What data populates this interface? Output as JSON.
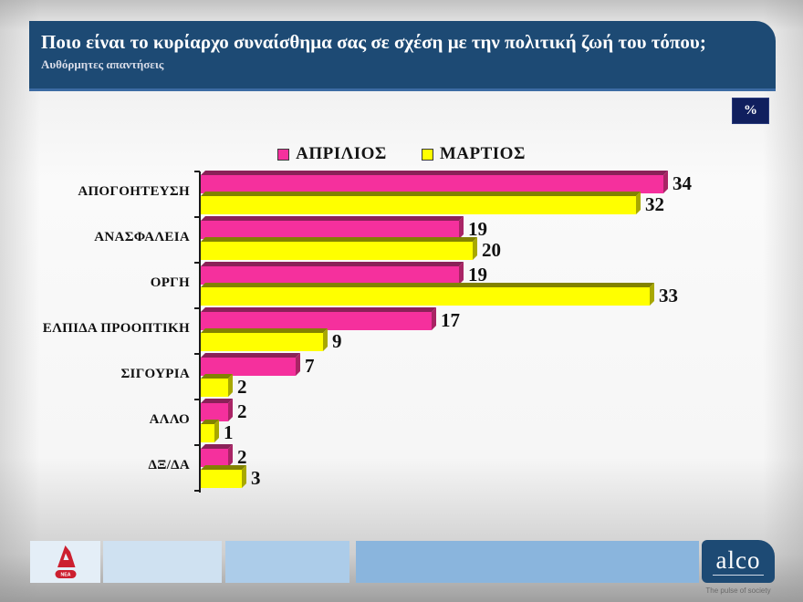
{
  "header": {
    "title": "Ποιο είναι το κυρίαρχο συναίσθημα σας σε σχέση με την πολιτική ζωή του τόπου;",
    "subtitle": "Αυθόρμητες απαντήσεις",
    "unit_badge": "%"
  },
  "chart_data": {
    "type": "bar",
    "orientation": "horizontal",
    "unit": "%",
    "title": "Ποιο είναι το κυρίαρχο συναίσθημα σας σε σχέση με την πολιτική ζωή του τόπου;",
    "categories": [
      "ΑΠΟΓΟΗΤΕΥΣΗ",
      "ΑΝΑΣΦΑΛΕΙΑ",
      "ΟΡΓΗ",
      "ΕΛΠΙΔΑ ΠΡΟΟΠΤΙΚΗ",
      "ΣΙΓΟΥΡΙΑ",
      "ΑΛΛΟ",
      "ΔΞ/ΔΑ"
    ],
    "series": [
      {
        "name": "ΑΠΡΙΛΙΟΣ",
        "color": "#f5309d",
        "color_top": "#8a2158",
        "color_side": "#a92465",
        "values": [
          34,
          19,
          19,
          17,
          7,
          2,
          2
        ]
      },
      {
        "name": "ΜΑΡΤΙΟΣ",
        "color": "#ffff00",
        "color_top": "#828200",
        "color_side": "#a8a800",
        "values": [
          32,
          20,
          33,
          9,
          2,
          1,
          3
        ]
      }
    ],
    "xlim": [
      0,
      44
    ],
    "value_labels": true,
    "legend_position": "top",
    "grid": false
  },
  "footer": {
    "alpha_badge_text": "ΝΕΑ",
    "alco_name": "alco",
    "alco_tagline": "The pulse of society"
  },
  "colors": {
    "title_bg": "#1d4a74",
    "badge_bg": "#101f5e",
    "strip_segments": [
      "#e4eef7",
      "#cfe1f1",
      "#accce9",
      "#8ab5dd"
    ],
    "alpha_red": "#cc1f2f"
  }
}
